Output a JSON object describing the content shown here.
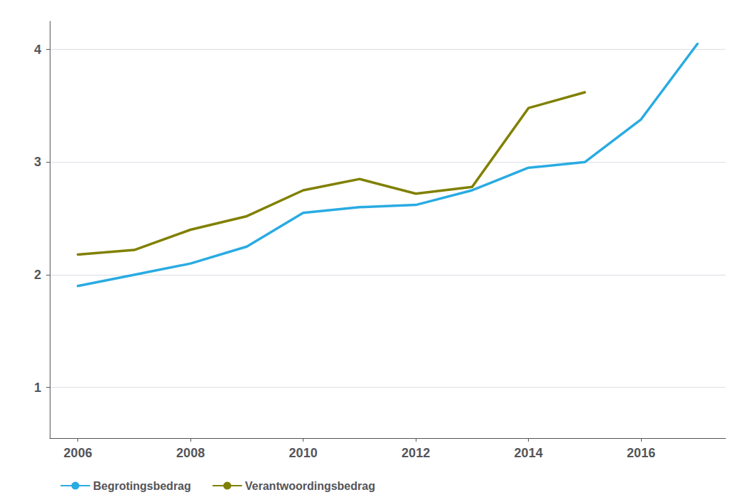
{
  "chart_data": {
    "type": "line",
    "x": [
      2006,
      2007,
      2008,
      2009,
      2010,
      2011,
      2012,
      2013,
      2014,
      2015,
      2016,
      2017
    ],
    "series": [
      {
        "name": "Begrotingsbedrag",
        "color": "#29ABE2",
        "values": [
          1.9,
          2.0,
          2.1,
          2.25,
          2.55,
          2.6,
          2.62,
          2.75,
          2.95,
          3.0,
          3.38,
          4.05
        ]
      },
      {
        "name": "Verantwoordingsbedrag",
        "color": "#808000",
        "values": [
          2.18,
          2.22,
          2.4,
          2.52,
          2.75,
          2.85,
          2.72,
          2.78,
          3.48,
          3.62,
          null,
          null
        ]
      }
    ],
    "xlim": [
      2005.5,
      2017.5
    ],
    "xticks": [
      2006,
      2008,
      2010,
      2012,
      2014,
      2016
    ],
    "ylim": [
      0.55,
      4.25
    ],
    "yticks": [
      1,
      2,
      3,
      4
    ],
    "grid": true,
    "legend": "lower left"
  }
}
